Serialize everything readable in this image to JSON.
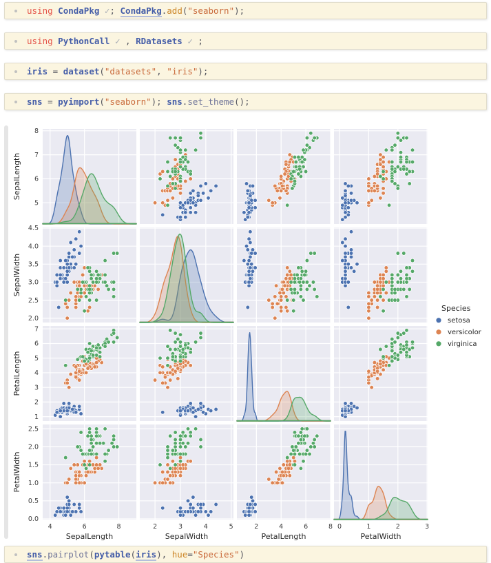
{
  "notebook": {
    "cells": [
      {
        "tokens": [
          [
            "kw",
            "using"
          ],
          [
            "pl",
            " "
          ],
          [
            "id",
            "CondaPkg"
          ],
          [
            "ck",
            " ✓"
          ],
          [
            "pu",
            "; "
          ],
          [
            "idl",
            "CondaPkg"
          ],
          [
            "pu",
            "."
          ],
          [
            "pr",
            "add"
          ],
          [
            "pu",
            "("
          ],
          [
            "st",
            "\"seaborn\""
          ],
          [
            "pu",
            ");"
          ]
        ]
      },
      {
        "tokens": [
          [
            "kw",
            "using"
          ],
          [
            "pl",
            " "
          ],
          [
            "id",
            "PythonCall"
          ],
          [
            "ck",
            " ✓"
          ],
          [
            "pu",
            " , "
          ],
          [
            "id",
            "RDatasets"
          ],
          [
            "ck",
            " ✓"
          ],
          [
            "pu",
            " ;"
          ]
        ]
      },
      {
        "tokens": [
          [
            "id",
            "iris"
          ],
          [
            "pu",
            " = "
          ],
          [
            "id",
            "dataset"
          ],
          [
            "pu",
            "("
          ],
          [
            "st",
            "\"datasets\""
          ],
          [
            "pu",
            ", "
          ],
          [
            "st",
            "\"iris\""
          ],
          [
            "pu",
            ");"
          ]
        ]
      },
      {
        "tokens": [
          [
            "id",
            "sns"
          ],
          [
            "pu",
            " = "
          ],
          [
            "id",
            "pyimport"
          ],
          [
            "pu",
            "("
          ],
          [
            "st",
            "\"seaborn\""
          ],
          [
            "pu",
            "); "
          ],
          [
            "id",
            "sns"
          ],
          [
            "pu",
            "."
          ],
          [
            "mt",
            "set_theme"
          ],
          [
            "pu",
            "();"
          ]
        ]
      },
      {
        "tokens": [
          [
            "idl",
            "sns"
          ],
          [
            "pu",
            "."
          ],
          [
            "mt",
            "pairplot"
          ],
          [
            "pu",
            "("
          ],
          [
            "id",
            "pytable"
          ],
          [
            "pu",
            "("
          ],
          [
            "idl",
            "iris"
          ],
          [
            "pu",
            "), "
          ],
          [
            "pr",
            "hue"
          ],
          [
            "pu",
            "="
          ],
          [
            "st",
            "\"Species\""
          ],
          [
            "pu",
            ")"
          ]
        ]
      }
    ]
  },
  "chart_data": {
    "type": "scatter",
    "subtype": "pairplot-matrix-4x4",
    "diagonal": "kde",
    "hue": "Species",
    "grid": true,
    "background": "#eaeaf2",
    "gridline_color": "#ffffff",
    "variables": [
      "SepalLength",
      "SepalWidth",
      "PetalLength",
      "PetalWidth"
    ],
    "legend": {
      "title": "Species",
      "position": "right",
      "entries": [
        "setosa",
        "versicolor",
        "virginica"
      ]
    },
    "palette": {
      "setosa": "#4c72b0",
      "versicolor": "#dd8452",
      "virginica": "#55a868"
    },
    "axes": [
      {
        "var": "SepalLength",
        "xlim": [
          3.57,
          9.02
        ],
        "ylim": [
          4.12,
          8.08
        ],
        "xticks": [
          "4",
          "6",
          "8"
        ],
        "yticks": [
          "5",
          "6",
          "7",
          "8"
        ]
      },
      {
        "var": "SepalWidth",
        "xlim": [
          1.4,
          5.09
        ],
        "ylim": [
          1.88,
          4.52
        ],
        "xticks": [
          "2",
          "3",
          "4",
          "5"
        ],
        "yticks": [
          "2.0",
          "2.5",
          "3.0",
          "3.5",
          "4.0",
          "4.5"
        ]
      },
      {
        "var": "PetalLength",
        "xlim": [
          0.42,
          8.0
        ],
        "ylim": [
          0.7,
          7.2
        ],
        "xticks": [
          "2",
          "4",
          "6",
          "8"
        ],
        "yticks": [
          "1",
          "2",
          "3",
          "4",
          "5",
          "6",
          "7"
        ]
      },
      {
        "var": "PetalWidth",
        "xlim": [
          -0.19,
          3.02
        ],
        "ylim": [
          -0.02,
          2.62
        ],
        "xticks": [
          "0",
          "1",
          "2",
          "3"
        ],
        "yticks": [
          "0.0",
          "0.5",
          "1.0",
          "1.5",
          "2.0",
          "2.5"
        ]
      }
    ],
    "series": [
      {
        "name": "setosa",
        "color": "#4c72b0",
        "points": [
          [
            5.1,
            3.5,
            1.4,
            0.2
          ],
          [
            4.9,
            3.0,
            1.4,
            0.2
          ],
          [
            4.7,
            3.2,
            1.3,
            0.2
          ],
          [
            4.6,
            3.1,
            1.5,
            0.2
          ],
          [
            5.0,
            3.6,
            1.4,
            0.2
          ],
          [
            5.4,
            3.9,
            1.7,
            0.4
          ],
          [
            4.6,
            3.4,
            1.4,
            0.3
          ],
          [
            5.0,
            3.4,
            1.5,
            0.2
          ],
          [
            4.4,
            2.9,
            1.4,
            0.2
          ],
          [
            4.9,
            3.1,
            1.5,
            0.1
          ],
          [
            5.4,
            3.7,
            1.5,
            0.2
          ],
          [
            4.8,
            3.4,
            1.6,
            0.2
          ],
          [
            4.8,
            3.0,
            1.4,
            0.1
          ],
          [
            4.3,
            3.0,
            1.1,
            0.1
          ],
          [
            5.8,
            4.0,
            1.2,
            0.2
          ],
          [
            5.7,
            4.4,
            1.5,
            0.4
          ],
          [
            5.4,
            3.9,
            1.3,
            0.4
          ],
          [
            5.1,
            3.5,
            1.4,
            0.3
          ],
          [
            5.7,
            3.8,
            1.7,
            0.3
          ],
          [
            5.1,
            3.8,
            1.5,
            0.3
          ],
          [
            5.4,
            3.4,
            1.7,
            0.2
          ],
          [
            5.1,
            3.7,
            1.5,
            0.4
          ],
          [
            4.6,
            3.6,
            1.0,
            0.2
          ],
          [
            5.1,
            3.3,
            1.7,
            0.5
          ],
          [
            4.8,
            3.4,
            1.9,
            0.2
          ],
          [
            5.0,
            3.0,
            1.6,
            0.2
          ],
          [
            5.0,
            3.4,
            1.6,
            0.4
          ],
          [
            5.2,
            3.5,
            1.5,
            0.2
          ],
          [
            5.2,
            3.4,
            1.4,
            0.2
          ],
          [
            4.7,
            3.2,
            1.6,
            0.2
          ],
          [
            4.8,
            3.1,
            1.6,
            0.2
          ],
          [
            5.4,
            3.4,
            1.5,
            0.4
          ],
          [
            5.2,
            4.1,
            1.5,
            0.1
          ],
          [
            5.5,
            4.2,
            1.4,
            0.2
          ],
          [
            4.9,
            3.1,
            1.5,
            0.2
          ],
          [
            5.0,
            3.2,
            1.2,
            0.2
          ],
          [
            5.5,
            3.5,
            1.3,
            0.2
          ],
          [
            4.9,
            3.6,
            1.4,
            0.1
          ],
          [
            4.4,
            3.0,
            1.3,
            0.2
          ],
          [
            5.1,
            3.4,
            1.5,
            0.2
          ],
          [
            5.0,
            3.5,
            1.3,
            0.3
          ],
          [
            4.5,
            2.3,
            1.3,
            0.3
          ],
          [
            4.4,
            3.2,
            1.3,
            0.2
          ],
          [
            5.0,
            3.5,
            1.6,
            0.6
          ],
          [
            5.1,
            3.8,
            1.9,
            0.4
          ],
          [
            4.8,
            3.0,
            1.4,
            0.3
          ],
          [
            5.1,
            3.8,
            1.6,
            0.2
          ],
          [
            4.6,
            3.2,
            1.4,
            0.2
          ],
          [
            5.3,
            3.7,
            1.5,
            0.2
          ],
          [
            5.0,
            3.3,
            1.4,
            0.2
          ]
        ]
      },
      {
        "name": "versicolor",
        "color": "#dd8452",
        "points": [
          [
            7.0,
            3.2,
            4.7,
            1.4
          ],
          [
            6.4,
            3.2,
            4.5,
            1.5
          ],
          [
            6.9,
            3.1,
            4.9,
            1.5
          ],
          [
            5.5,
            2.3,
            4.0,
            1.3
          ],
          [
            6.5,
            2.8,
            4.6,
            1.5
          ],
          [
            5.7,
            2.8,
            4.5,
            1.3
          ],
          [
            6.3,
            3.3,
            4.7,
            1.6
          ],
          [
            4.9,
            2.4,
            3.3,
            1.0
          ],
          [
            6.6,
            2.9,
            4.6,
            1.3
          ],
          [
            5.2,
            2.7,
            3.9,
            1.4
          ],
          [
            5.0,
            2.0,
            3.5,
            1.0
          ],
          [
            5.9,
            3.0,
            4.2,
            1.5
          ],
          [
            6.0,
            2.2,
            4.0,
            1.0
          ],
          [
            6.1,
            2.9,
            4.7,
            1.4
          ],
          [
            5.6,
            2.9,
            3.6,
            1.3
          ],
          [
            6.7,
            3.1,
            4.4,
            1.4
          ],
          [
            5.6,
            3.0,
            4.5,
            1.5
          ],
          [
            5.8,
            2.7,
            4.1,
            1.0
          ],
          [
            6.2,
            2.2,
            4.5,
            1.5
          ],
          [
            5.6,
            2.5,
            3.9,
            1.1
          ],
          [
            5.9,
            3.2,
            4.8,
            1.8
          ],
          [
            6.1,
            2.8,
            4.0,
            1.3
          ],
          [
            6.3,
            2.5,
            4.9,
            1.5
          ],
          [
            6.1,
            2.8,
            4.7,
            1.2
          ],
          [
            6.4,
            2.9,
            4.3,
            1.3
          ],
          [
            6.6,
            3.0,
            4.4,
            1.4
          ],
          [
            6.8,
            2.8,
            4.8,
            1.4
          ],
          [
            6.7,
            3.0,
            5.0,
            1.7
          ],
          [
            6.0,
            2.9,
            4.5,
            1.5
          ],
          [
            5.7,
            2.6,
            3.5,
            1.0
          ],
          [
            5.5,
            2.4,
            3.8,
            1.1
          ],
          [
            5.5,
            2.4,
            3.7,
            1.0
          ],
          [
            5.8,
            2.7,
            3.9,
            1.2
          ],
          [
            6.0,
            2.7,
            5.1,
            1.6
          ],
          [
            5.4,
            3.0,
            4.5,
            1.5
          ],
          [
            6.0,
            3.4,
            4.5,
            1.6
          ],
          [
            6.7,
            3.1,
            4.7,
            1.5
          ],
          [
            6.3,
            2.3,
            4.4,
            1.3
          ],
          [
            5.6,
            3.0,
            4.1,
            1.3
          ],
          [
            5.5,
            2.5,
            4.0,
            1.3
          ],
          [
            5.5,
            2.6,
            4.4,
            1.2
          ],
          [
            6.1,
            3.0,
            4.6,
            1.4
          ],
          [
            5.8,
            2.6,
            4.0,
            1.2
          ],
          [
            5.0,
            2.3,
            3.3,
            1.0
          ],
          [
            5.6,
            2.7,
            4.2,
            1.3
          ],
          [
            5.7,
            3.0,
            4.2,
            1.2
          ],
          [
            5.7,
            2.9,
            4.2,
            1.3
          ],
          [
            6.2,
            2.9,
            4.3,
            1.3
          ],
          [
            5.1,
            2.5,
            3.0,
            1.1
          ],
          [
            5.7,
            2.8,
            4.1,
            1.3
          ]
        ]
      },
      {
        "name": "virginica",
        "color": "#55a868",
        "points": [
          [
            6.3,
            3.3,
            6.0,
            2.5
          ],
          [
            5.8,
            2.7,
            5.1,
            1.9
          ],
          [
            7.1,
            3.0,
            5.9,
            2.1
          ],
          [
            6.3,
            2.9,
            5.6,
            1.8
          ],
          [
            6.5,
            3.0,
            5.8,
            2.2
          ],
          [
            7.6,
            3.0,
            6.6,
            2.1
          ],
          [
            4.9,
            2.5,
            4.5,
            1.7
          ],
          [
            7.3,
            2.9,
            6.3,
            1.8
          ],
          [
            6.7,
            2.5,
            5.8,
            1.8
          ],
          [
            7.2,
            3.6,
            6.1,
            2.5
          ],
          [
            6.5,
            3.2,
            5.1,
            2.0
          ],
          [
            6.4,
            2.7,
            5.3,
            1.9
          ],
          [
            6.8,
            3.0,
            5.5,
            2.1
          ],
          [
            5.7,
            2.5,
            5.0,
            2.0
          ],
          [
            5.8,
            2.8,
            5.1,
            2.4
          ],
          [
            6.4,
            3.2,
            5.3,
            2.3
          ],
          [
            6.5,
            3.0,
            5.5,
            1.8
          ],
          [
            7.7,
            3.8,
            6.7,
            2.2
          ],
          [
            7.7,
            2.6,
            6.9,
            2.3
          ],
          [
            6.0,
            2.2,
            5.0,
            1.5
          ],
          [
            6.9,
            3.2,
            5.7,
            2.3
          ],
          [
            5.6,
            2.8,
            4.9,
            2.0
          ],
          [
            7.7,
            2.8,
            6.7,
            2.0
          ],
          [
            6.3,
            2.7,
            4.9,
            1.8
          ],
          [
            6.7,
            3.3,
            5.7,
            2.1
          ],
          [
            7.2,
            3.2,
            6.0,
            1.8
          ],
          [
            6.2,
            2.8,
            4.8,
            1.8
          ],
          [
            6.1,
            3.0,
            4.9,
            1.8
          ],
          [
            6.4,
            2.8,
            5.6,
            2.1
          ],
          [
            7.2,
            3.0,
            5.8,
            1.6
          ],
          [
            7.4,
            2.8,
            6.1,
            1.9
          ],
          [
            7.9,
            3.8,
            6.4,
            2.0
          ],
          [
            6.4,
            2.8,
            5.6,
            2.2
          ],
          [
            6.3,
            2.8,
            5.1,
            1.5
          ],
          [
            6.1,
            2.6,
            5.6,
            1.4
          ],
          [
            7.7,
            3.0,
            6.1,
            2.3
          ],
          [
            6.3,
            3.4,
            5.6,
            2.4
          ],
          [
            6.4,
            3.1,
            5.5,
            1.8
          ],
          [
            6.0,
            3.0,
            4.8,
            1.8
          ],
          [
            6.9,
            3.1,
            5.4,
            2.1
          ],
          [
            6.7,
            3.1,
            5.6,
            2.4
          ],
          [
            6.9,
            3.1,
            5.1,
            2.3
          ],
          [
            5.8,
            2.7,
            5.1,
            1.9
          ],
          [
            6.8,
            3.2,
            5.9,
            2.3
          ],
          [
            6.7,
            3.3,
            5.7,
            2.5
          ],
          [
            6.7,
            3.0,
            5.2,
            2.3
          ],
          [
            6.3,
            2.5,
            5.0,
            1.9
          ],
          [
            6.5,
            3.0,
            5.2,
            2.0
          ],
          [
            6.2,
            3.4,
            5.4,
            2.3
          ],
          [
            5.9,
            3.0,
            5.1,
            1.8
          ]
        ]
      }
    ]
  }
}
